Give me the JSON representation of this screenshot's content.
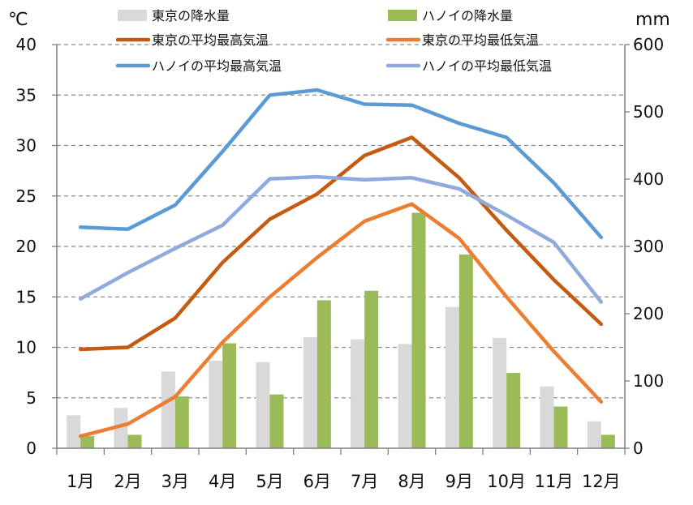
{
  "chart_data": {
    "type": "bar",
    "categories": [
      "1月",
      "2月",
      "3月",
      "4月",
      "5月",
      "6月",
      "7月",
      "8月",
      "9月",
      "10月",
      "11月",
      "12月"
    ],
    "y_left": {
      "unit": "℃",
      "ylim": [
        0,
        40
      ],
      "ticks": [
        0,
        5,
        10,
        15,
        20,
        25,
        30,
        35,
        40
      ]
    },
    "y_right": {
      "unit": "mm",
      "ylim": [
        0,
        600
      ],
      "ticks": [
        0,
        100,
        200,
        300,
        400,
        500,
        600
      ]
    },
    "grid": true,
    "legend_position": "top",
    "bar_series": [
      {
        "name": "東京の降水量",
        "color": "#d9d9d9",
        "axis": "right",
        "values": [
          49,
          60,
          114,
          130,
          128,
          165,
          162,
          155,
          210,
          164,
          92,
          40
        ]
      },
      {
        "name": "ハノイの降水量",
        "color": "#9bbb59",
        "axis": "right",
        "values": [
          18,
          20,
          77,
          156,
          80,
          220,
          234,
          350,
          288,
          112,
          62,
          20
        ]
      }
    ],
    "line_series": [
      {
        "name": "東京の平均最高気温",
        "color": "#c55a11",
        "axis": "left",
        "values": [
          9.8,
          10.0,
          12.9,
          18.4,
          22.7,
          25.2,
          29.0,
          30.8,
          26.8,
          21.6,
          16.7,
          12.3
        ]
      },
      {
        "name": "東京の平均最低気温",
        "color": "#ed7d31",
        "axis": "left",
        "values": [
          1.2,
          2.4,
          5.1,
          10.5,
          15.0,
          18.9,
          22.5,
          24.2,
          20.8,
          15.0,
          9.6,
          4.6
        ]
      },
      {
        "name": "ハノイの平均最高気温",
        "color": "#5b9bd5",
        "axis": "left",
        "values": [
          21.9,
          21.7,
          24.1,
          29.4,
          35.0,
          35.5,
          34.1,
          34.0,
          32.2,
          30.8,
          26.3,
          20.9
        ]
      },
      {
        "name": "ハノイの平均最低気温",
        "color": "#8faadc",
        "axis": "left",
        "values": [
          14.8,
          17.4,
          19.8,
          22.1,
          26.7,
          26.9,
          26.6,
          26.8,
          25.7,
          23.1,
          20.4,
          14.5
        ]
      }
    ]
  }
}
